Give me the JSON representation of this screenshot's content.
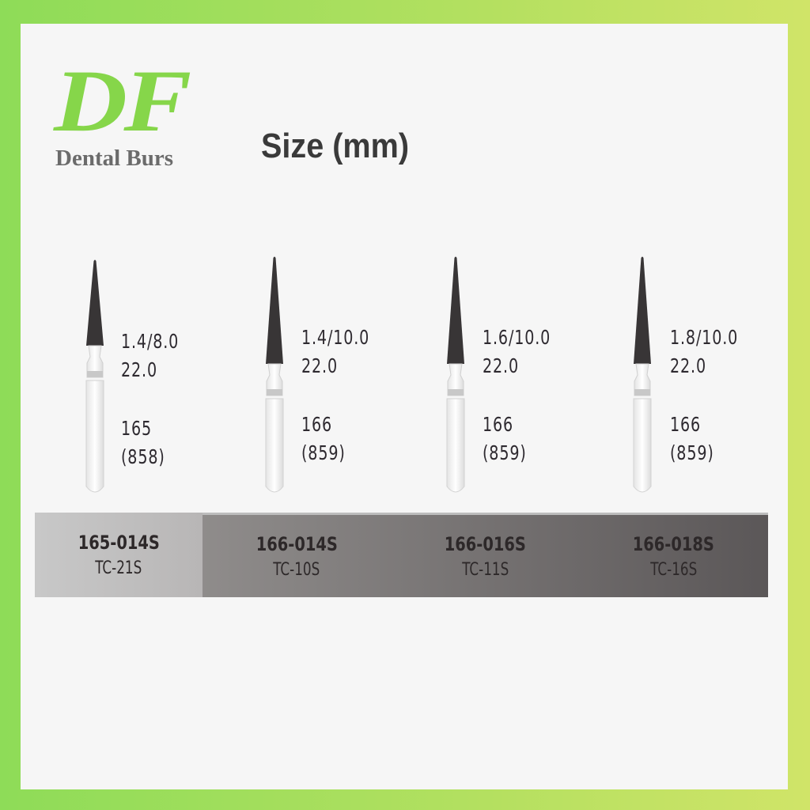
{
  "logo": {
    "mark": "DF",
    "subtitle": "Dental Burs",
    "color": "#86d64a"
  },
  "title": "Size (mm)",
  "burs": [
    {
      "size": "1.4/8.0",
      "length": "22.0",
      "iso": "165",
      "alt": "(858)",
      "code": "165-014S",
      "tc": "TC-21S"
    },
    {
      "size": "1.4/10.0",
      "length": "22.0",
      "iso": "166",
      "alt": "(859)",
      "code": "166-014S",
      "tc": "TC-10S"
    },
    {
      "size": "1.6/10.0",
      "length": "22.0",
      "iso": "166",
      "alt": "(859)",
      "code": "166-016S",
      "tc": "TC-11S"
    },
    {
      "size": "1.8/10.0",
      "length": "22.0",
      "iso": "166",
      "alt": "(859)",
      "code": "166-018S",
      "tc": "TC-16S"
    }
  ]
}
